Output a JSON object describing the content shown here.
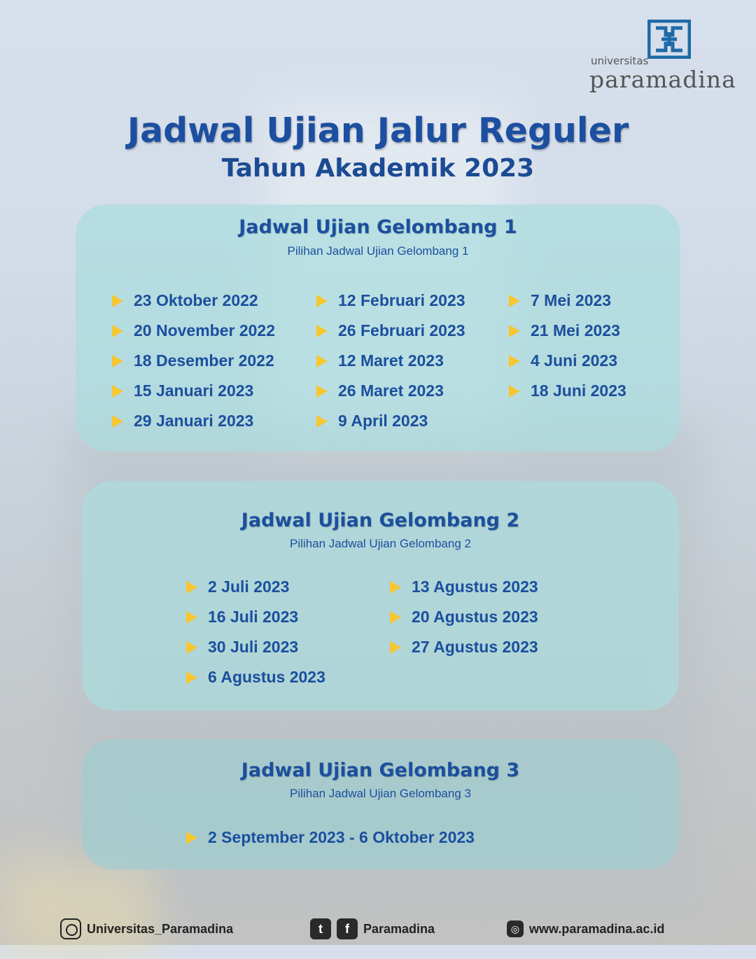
{
  "logo": {
    "small": "universitas",
    "big": "paramadina"
  },
  "header": {
    "title": "Jadwal Ujian Jalur Reguler",
    "subtitle": "Tahun Akademik 2023"
  },
  "waves": [
    {
      "title": "Jadwal Ujian Gelombang 1",
      "subtitle": "Pilihan Jadwal Ujian Gelombang 1",
      "columns": [
        [
          "23 Oktober 2022",
          "20 November 2022",
          "18 Desember 2022",
          "15 Januari 2023",
          "29 Januari 2023"
        ],
        [
          "12 Februari 2023",
          "26 Februari 2023",
          "12 Maret 2023",
          "26 Maret 2023",
          "9 April 2023"
        ],
        [
          "7 Mei 2023",
          "21 Mei 2023",
          "4 Juni 2023",
          "18 Juni 2023"
        ]
      ]
    },
    {
      "title": "Jadwal Ujian Gelombang 2",
      "subtitle": "Pilihan Jadwal Ujian Gelombang 2",
      "columns": [
        [
          "2 Juli 2023",
          "16 Juli 2023",
          "30 Juli 2023",
          "6 Agustus 2023"
        ],
        [
          "13 Agustus 2023",
          "20 Agustus 2023",
          "27 Agustus 2023"
        ]
      ]
    },
    {
      "title": "Jadwal Ujian Gelombang 3",
      "subtitle": "Pilihan Jadwal Ujian Gelombang 3",
      "columns": [
        [
          "2 September 2023 - 6 Oktober 2023"
        ]
      ]
    }
  ],
  "footer": {
    "instagram": "Universitas_Paramadina",
    "social": "Paramadina",
    "website": "www.paramadina.ac.id"
  },
  "colors": {
    "text": "#1b4f9e",
    "bullet": "#f7c630",
    "card": "#aadcde"
  }
}
